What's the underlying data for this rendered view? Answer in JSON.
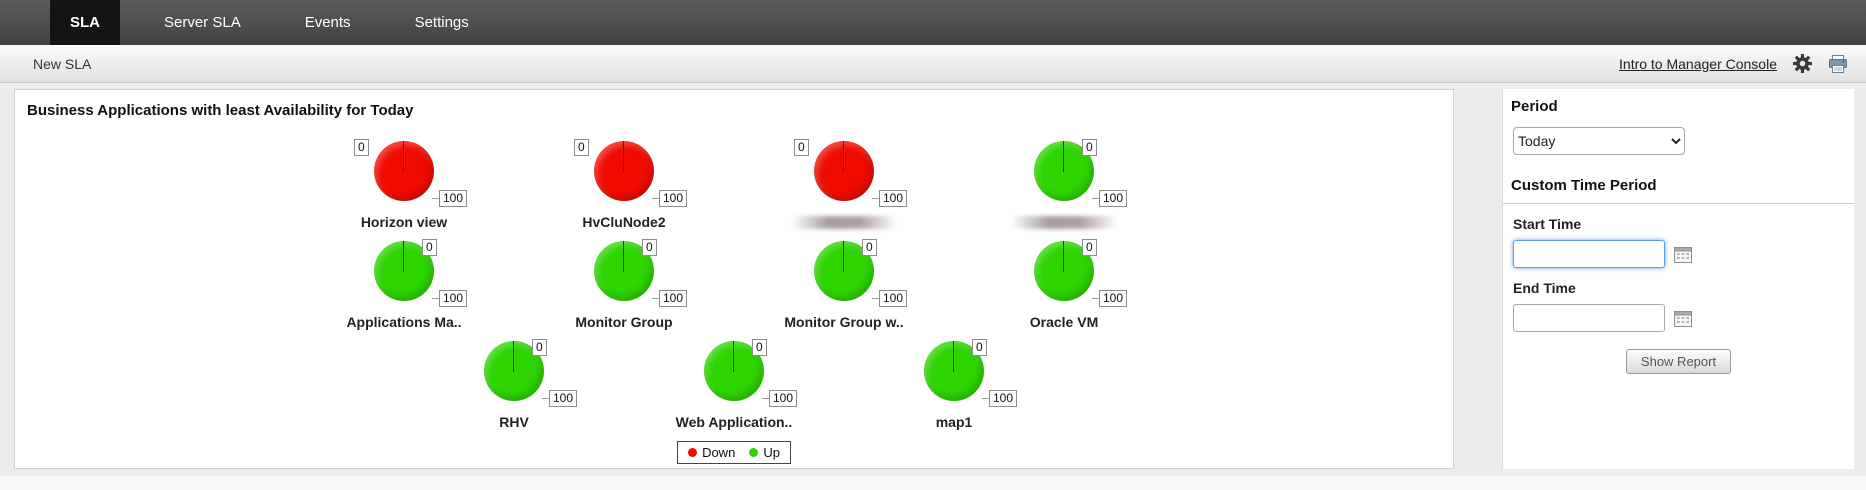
{
  "nav": {
    "tabs": [
      {
        "label": "SLA",
        "active": true
      },
      {
        "label": "Server SLA",
        "active": false
      },
      {
        "label": "Events",
        "active": false
      },
      {
        "label": "Settings",
        "active": false
      }
    ]
  },
  "subbar": {
    "title": "New SLA",
    "link_label": "Intro to Manager Console",
    "icons": [
      "gear-icon",
      "printer-icon"
    ]
  },
  "panel": {
    "title": "Business Applications with least Availability for Today"
  },
  "chart_data": {
    "type": "gauge",
    "title": "Business Applications with least Availability for Today",
    "scale": {
      "min": 0,
      "max": 100
    },
    "min_label": "0",
    "max_label": "100",
    "status_colors": {
      "down": "#f00b00",
      "up": "#2dd400"
    },
    "gauges": [
      {
        "name": "Horizon view",
        "status": "down"
      },
      {
        "name": "HvCluNode2",
        "status": "down"
      },
      {
        "name": "",
        "status": "down",
        "name_blurred": true
      },
      {
        "name": "",
        "status": "up",
        "name_blurred": true
      },
      {
        "name": "Applications Ma..",
        "status": "up"
      },
      {
        "name": "Monitor Group",
        "status": "up"
      },
      {
        "name": "Monitor Group w..",
        "status": "up"
      },
      {
        "name": "Oracle VM",
        "status": "up"
      },
      {
        "name": "RHV",
        "status": "up"
      },
      {
        "name": "Web Application..",
        "status": "up"
      },
      {
        "name": "map1",
        "status": "up"
      }
    ],
    "rows": [
      [
        0,
        1,
        2,
        3
      ],
      [
        4,
        5,
        6,
        7
      ],
      [
        8,
        9,
        10
      ]
    ],
    "legend": [
      {
        "label": "Down",
        "color": "#f00b00"
      },
      {
        "label": "Up",
        "color": "#2dd400"
      }
    ],
    "legend_position": "bottom-center",
    "grid": false
  },
  "sidebar": {
    "period_header": "Period",
    "period_value": "Today",
    "period_options": [
      "Today"
    ],
    "custom_header": "Custom Time Period",
    "start_label": "Start Time",
    "start_value": "",
    "end_label": "End Time",
    "end_value": "",
    "show_report_label": "Show Report"
  }
}
